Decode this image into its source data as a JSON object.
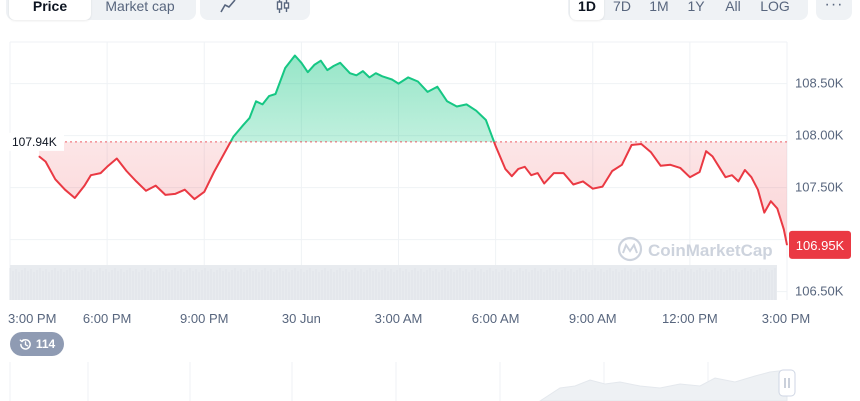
{
  "tabs": {
    "metric": [
      {
        "label": "Price",
        "active": true
      },
      {
        "label": "Market cap",
        "active": false
      }
    ],
    "chart_type": [
      {
        "icon": "line-chart-icon",
        "active": true
      },
      {
        "icon": "candlestick-icon",
        "active": false
      }
    ],
    "range": [
      {
        "label": "1D",
        "active": true
      },
      {
        "label": "7D",
        "active": false
      },
      {
        "label": "1M",
        "active": false
      },
      {
        "label": "1Y",
        "active": false
      },
      {
        "label": "All",
        "active": false
      },
      {
        "label": "LOG",
        "active": false
      }
    ],
    "more_label": "···"
  },
  "watermark": "CoinMarketCap",
  "history_badge": {
    "icon": "history-icon",
    "count": "114"
  },
  "colors": {
    "up": "#16c784",
    "down": "#ea3943",
    "up_fill": "#16c784",
    "down_fill": "#ea3943",
    "grid": "#eff2f5",
    "axis_text": "#58667e"
  },
  "chart_data": {
    "type": "area",
    "reference_value": 107940,
    "reference_label": "107.94K",
    "current_label": "106.95K",
    "ylim": [
      106420,
      108900
    ],
    "y_ticks": [
      {
        "value": 106500,
        "label": "106.50K"
      },
      {
        "value": 107000,
        "label": ""
      },
      {
        "value": 107500,
        "label": "107.50K"
      },
      {
        "value": 108000,
        "label": "108.00K"
      },
      {
        "value": 108500,
        "label": "108.50K"
      }
    ],
    "x_ticks": [
      {
        "hour": 0,
        "label": "3:00 PM"
      },
      {
        "hour": 3,
        "label": "6:00 PM"
      },
      {
        "hour": 6,
        "label": "9:00 PM"
      },
      {
        "hour": 9,
        "label": "30 Jun"
      },
      {
        "hour": 12,
        "label": "3:00 AM"
      },
      {
        "hour": 15,
        "label": "6:00 AM"
      },
      {
        "hour": 18,
        "label": "9:00 AM"
      },
      {
        "hour": 21,
        "label": "12:00 PM"
      },
      {
        "hour": 24,
        "label": "3:00 PM"
      }
    ],
    "series": [
      {
        "x": [
          0.9,
          1.1,
          1.4,
          1.7,
          2.0,
          2.3,
          2.5,
          2.8,
          3.0,
          3.3,
          3.6,
          3.9,
          4.2,
          4.5,
          4.8,
          5.1,
          5.4,
          5.7,
          6.0,
          6.3,
          6.6,
          6.9,
          7.2,
          7.4,
          7.6,
          7.8,
          8.0,
          8.2,
          8.5,
          8.8,
          9.0,
          9.2,
          9.4,
          9.6,
          9.8,
          10.0,
          10.2,
          10.5,
          10.7,
          10.9,
          11.1,
          11.3,
          11.5,
          11.8,
          12.0,
          12.3,
          12.6,
          12.9,
          13.2,
          13.5,
          13.8,
          14.1,
          14.4,
          14.7,
          15.0,
          15.3,
          15.5,
          15.7,
          15.9,
          16.1,
          16.3,
          16.5,
          16.8,
          17.1,
          17.4,
          17.7,
          18.0,
          18.3,
          18.6,
          18.9,
          19.2,
          19.5,
          19.8,
          20.1,
          20.4,
          20.7,
          21.0,
          21.3,
          21.5,
          21.7,
          21.9,
          22.1,
          22.3,
          22.5,
          22.7,
          22.9,
          23.1,
          23.3,
          23.5,
          23.7,
          23.9,
          24.0
        ],
        "y": [
          107800,
          107750,
          107580,
          107480,
          107400,
          107520,
          107620,
          107640,
          107700,
          107780,
          107660,
          107560,
          107470,
          107520,
          107430,
          107440,
          107480,
          107390,
          107460,
          107650,
          107820,
          107990,
          108100,
          108170,
          108330,
          108300,
          108380,
          108400,
          108650,
          108770,
          108700,
          108610,
          108680,
          108720,
          108630,
          108670,
          108700,
          108600,
          108580,
          108620,
          108560,
          108600,
          108570,
          108540,
          108500,
          108560,
          108520,
          108420,
          108470,
          108330,
          108280,
          108300,
          108240,
          108150,
          107900,
          107680,
          107610,
          107680,
          107700,
          107620,
          107640,
          107540,
          107640,
          107640,
          107530,
          107560,
          107490,
          107510,
          107660,
          107720,
          107910,
          107920,
          107840,
          107710,
          107720,
          107690,
          107600,
          107650,
          107850,
          107800,
          107700,
          107600,
          107620,
          107560,
          107670,
          107600,
          107480,
          107260,
          107370,
          107300,
          107100,
          106950
        ]
      }
    ]
  }
}
